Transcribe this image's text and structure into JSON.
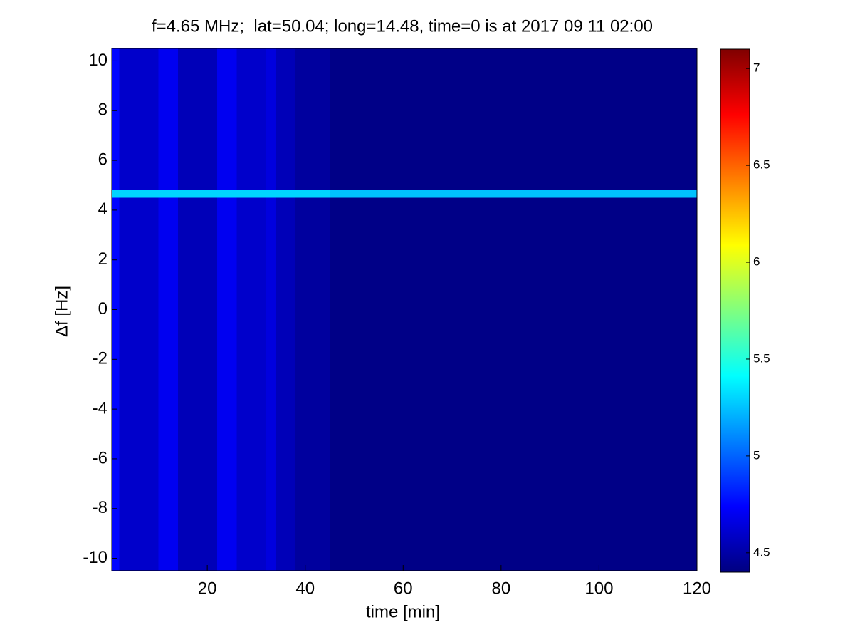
{
  "chart_data": {
    "type": "heatmap",
    "title": "f=4.65 MHz;  lat=50.04; long=14.48, time=0 is at 2017 09 11 02:00",
    "x_label": "time [min]",
    "y_label": "Δf [Hz]",
    "x_bins": [
      0.5,
      2,
      10,
      14,
      22,
      26,
      32,
      34,
      38,
      45,
      120
    ],
    "y_bins": [
      -10.5,
      4.5,
      4.8,
      10.5
    ],
    "z": [
      [
        4.75,
        4.6,
        4.7,
        4.55,
        4.7,
        4.6,
        4.65,
        4.55,
        4.48,
        4.42
      ],
      [
        5.3,
        5.3,
        5.3,
        5.3,
        5.3,
        5.3,
        5.3,
        5.3,
        5.3,
        5.25
      ],
      [
        4.75,
        4.6,
        4.7,
        4.55,
        4.7,
        4.6,
        4.65,
        4.55,
        4.48,
        4.42
      ]
    ],
    "xlim": [
      0.5,
      120
    ],
    "xticks": [
      20,
      40,
      60,
      80,
      100,
      120
    ],
    "ylim": [
      -10.5,
      10.5
    ],
    "yticks": [
      -10,
      -8,
      -6,
      -4,
      -2,
      0,
      2,
      4,
      6,
      8,
      10
    ],
    "clim": [
      4.4,
      7.1
    ],
    "cticks": [
      4.5,
      5,
      5.5,
      6,
      6.5,
      7
    ],
    "colormap": "jet"
  }
}
